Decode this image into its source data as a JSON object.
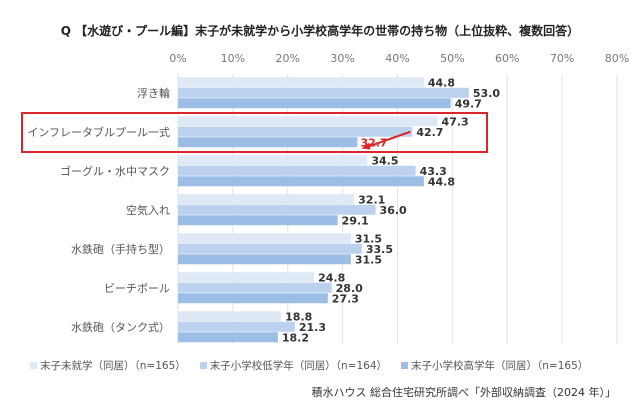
{
  "chart_data": {
    "type": "bar",
    "orientation": "horizontal",
    "title": "Q 【水遊び・プール編】末子が未就学から小学校高学年の世帯の持ち物（上位抜粋、複数回答）",
    "categories": [
      "浮き輪",
      "インフレータブルプール一式",
      "ゴーグル・水中マスク",
      "空気入れ",
      "水鉄砲（手持ち型）",
      "ビーチボール",
      "水鉄砲（タンク式）"
    ],
    "series": [
      {
        "name": "末子未就学（同居）（n=165）",
        "color": "#dfe8f5",
        "values": [
          44.8,
          47.3,
          34.5,
          32.1,
          31.5,
          24.8,
          18.8
        ]
      },
      {
        "name": "末子小学校低学年（同居）（n=164）",
        "color": "#bcd1ee",
        "values": [
          53.0,
          42.7,
          43.3,
          36.0,
          33.5,
          28.0,
          21.3
        ]
      },
      {
        "name": "末子小学校高学年（同居）（n=165）",
        "color": "#9cbde6",
        "values": [
          49.7,
          32.7,
          44.8,
          29.1,
          31.5,
          27.3,
          18.2
        ]
      }
    ],
    "xlim": [
      0,
      80
    ],
    "xticks": [
      "0%",
      "10%",
      "20%",
      "30%",
      "40%",
      "50%",
      "60%",
      "70%",
      "80%"
    ],
    "highlight": {
      "category": "インフレータブルプール一式",
      "color": "#d9262c"
    }
  },
  "source": "積水ハウス 総合住宅研究所調べ「外部収納調査（2024 年）」"
}
